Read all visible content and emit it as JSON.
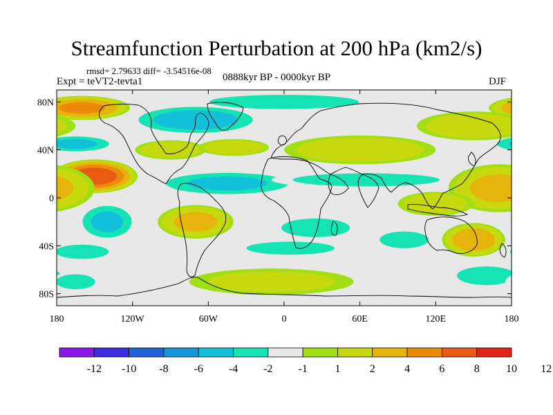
{
  "title": "Streamfunction Perturbation at 200 hPa (km2/s)",
  "stats": "rmsd= 2.79633  diff= -3.54516e-08",
  "experiment": "Expt = teVT2-tevta1",
  "period": "0888kyr BP - 0000kyr BP",
  "season": "DJF",
  "axes": {
    "lat_ticks": [
      "80N",
      "40N",
      "0",
      "40S",
      "80S"
    ],
    "lon_ticks": [
      "180",
      "120W",
      "60W",
      "0",
      "60E",
      "120E",
      "180"
    ]
  },
  "colorbar": {
    "colors": [
      "#8a17e6",
      "#3c2fdf",
      "#1f63db",
      "#1996d9",
      "#13c0da",
      "#16e3b4",
      "#e8e8e8",
      "#a1df14",
      "#c8d80f",
      "#e6b40b",
      "#ec8a0c",
      "#e65a11",
      "#e32418"
    ],
    "labels": [
      "-12",
      "-10",
      "-8",
      "-6",
      "-4",
      "-2",
      "-1",
      "1",
      "2",
      "4",
      "6",
      "8",
      "10",
      "12"
    ]
  },
  "map": {
    "background": "#e8e8e8",
    "anomalies": [
      {
        "lon": -150,
        "lat": 18,
        "rx": 34,
        "ry": 14,
        "v": 9
      },
      {
        "lon": -160,
        "lat": 75,
        "rx": 38,
        "ry": 10,
        "v": 6
      },
      {
        "lon": -165,
        "lat": 45,
        "rx": 30,
        "ry": 7,
        "v": -4
      },
      {
        "lon": -70,
        "lat": 65,
        "rx": 50,
        "ry": 12,
        "v": -5
      },
      {
        "lon": -90,
        "lat": 40,
        "rx": 28,
        "ry": 8,
        "v": 3
      },
      {
        "lon": -40,
        "lat": 42,
        "rx": 28,
        "ry": 7,
        "v": 3
      },
      {
        "lon": -45,
        "lat": 12,
        "rx": 55,
        "ry": 10,
        "v": -4
      },
      {
        "lon": 0,
        "lat": 80,
        "rx": 70,
        "ry": 7,
        "v": -3
      },
      {
        "lon": 60,
        "lat": 40,
        "rx": 60,
        "ry": 12,
        "v": 3
      },
      {
        "lon": 150,
        "lat": 60,
        "rx": 45,
        "ry": 12,
        "v": 3
      },
      {
        "lon": 65,
        "lat": 15,
        "rx": 75,
        "ry": 7,
        "v": -2
      },
      {
        "lon": 170,
        "lat": 8,
        "rx": 40,
        "ry": 20,
        "v": 4
      },
      {
        "lon": 120,
        "lat": -5,
        "rx": 30,
        "ry": 10,
        "v": 3
      },
      {
        "lon": -140,
        "lat": -20,
        "rx": 22,
        "ry": 15,
        "v": -4
      },
      {
        "lon": -70,
        "lat": -20,
        "rx": 30,
        "ry": 14,
        "v": 4
      },
      {
        "lon": -160,
        "lat": -45,
        "rx": 25,
        "ry": 7,
        "v": -3
      },
      {
        "lon": 25,
        "lat": -25,
        "rx": 35,
        "ry": 10,
        "v": -2
      },
      {
        "lon": 5,
        "lat": -42,
        "rx": 45,
        "ry": 7,
        "v": -2
      },
      {
        "lon": 95,
        "lat": -35,
        "rx": 25,
        "ry": 9,
        "v": -2
      },
      {
        "lon": 150,
        "lat": -35,
        "rx": 25,
        "ry": 14,
        "v": 5
      },
      {
        "lon": 160,
        "lat": -65,
        "rx": 30,
        "ry": 10,
        "v": -2
      },
      {
        "lon": -10,
        "lat": -70,
        "rx": 65,
        "ry": 11,
        "v": 2
      },
      {
        "lon": -165,
        "lat": -70,
        "rx": 20,
        "ry": 8,
        "v": -2
      }
    ]
  }
}
